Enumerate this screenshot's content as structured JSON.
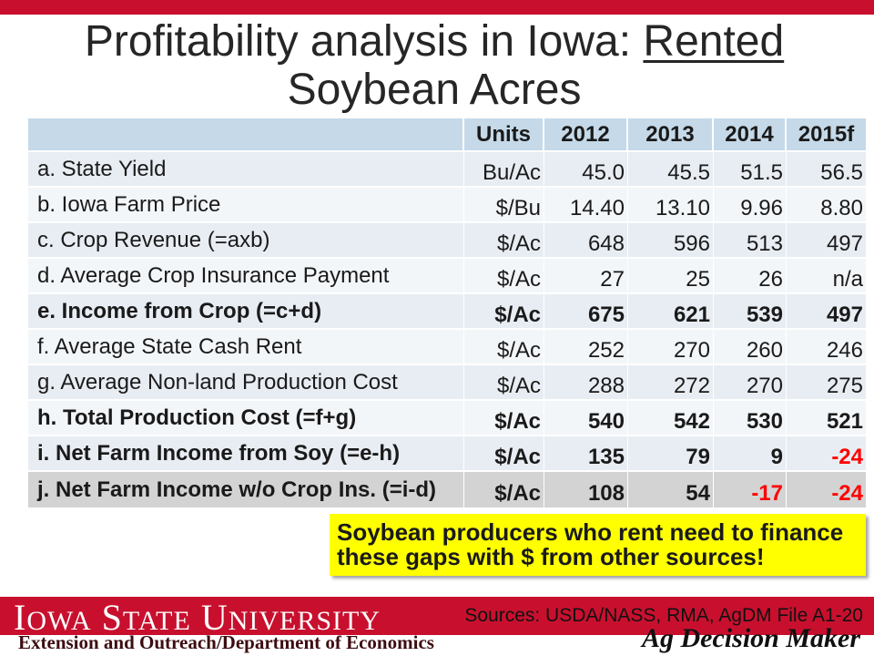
{
  "title": {
    "prefix": "Profitability analysis in Iowa: ",
    "underlined": "Rented",
    "suffix": "Soybean Acres"
  },
  "table": {
    "columns": [
      "",
      "Units",
      "2012",
      "2013",
      "2014",
      "2015f"
    ],
    "rows": [
      {
        "label": "a. State Yield",
        "units": "Bu/Ac",
        "values": [
          "45.0",
          "45.5",
          "51.5",
          "56.5"
        ]
      },
      {
        "label": "b. Iowa Farm Price",
        "units": "$/Bu",
        "values": [
          "14.40",
          "13.10",
          "9.96",
          "8.80"
        ]
      },
      {
        "label": "c. Crop Revenue (=axb)",
        "units": "$/Ac",
        "values": [
          "648",
          "596",
          "513",
          "497"
        ]
      },
      {
        "label": "d. Average Crop Insurance Payment",
        "units": "$/Ac",
        "values": [
          "27",
          "25",
          "26",
          "n/a"
        ]
      },
      {
        "label": "e. Income from Crop (=c+d)",
        "units": "$/Ac",
        "values": [
          "675",
          "621",
          "539",
          "497"
        ]
      },
      {
        "label": "f. Average State Cash Rent",
        "units": "$/Ac",
        "values": [
          "252",
          "270",
          "260",
          "246"
        ]
      },
      {
        "label": "g. Average Non-land Production Cost",
        "units": "$/Ac",
        "values": [
          "288",
          "272",
          "270",
          "275"
        ]
      },
      {
        "label": "h. Total Production Cost (=f+g)",
        "units": "$/Ac",
        "values": [
          "540",
          "542",
          "530",
          "521"
        ]
      },
      {
        "label": "i. Net Farm Income from Soy (=e-h)",
        "units": "$/Ac",
        "values": [
          "135",
          "79",
          "9",
          "-24"
        ]
      },
      {
        "label": "j. Net Farm Income w/o Crop Ins. (=i-d)",
        "units": "$/Ac",
        "values": [
          "108",
          "54",
          "-17",
          "-24"
        ]
      }
    ]
  },
  "callout": {
    "lines": [
      "Soybean producers who rent need to finance",
      "these gaps with $ from other sources!"
    ]
  },
  "sources": "Sources: USDA/NASS, RMA, AgDM File A1-20",
  "footer": {
    "wordmark": "IOWA STATE UNIVERSITY",
    "department": "Extension and Outreach/Department of Economics",
    "program": "Ag Decision Maker"
  },
  "colors": {
    "brand_red": "#C8102E",
    "header_fill": "#C5D9E8",
    "row_fill": "#E8EDF3",
    "row_fill_alt": "#F3F6F9",
    "summary_row_fill": "#D3D3D3",
    "callout_fill": "#FFFF00",
    "negative_value": "#FF0000"
  }
}
